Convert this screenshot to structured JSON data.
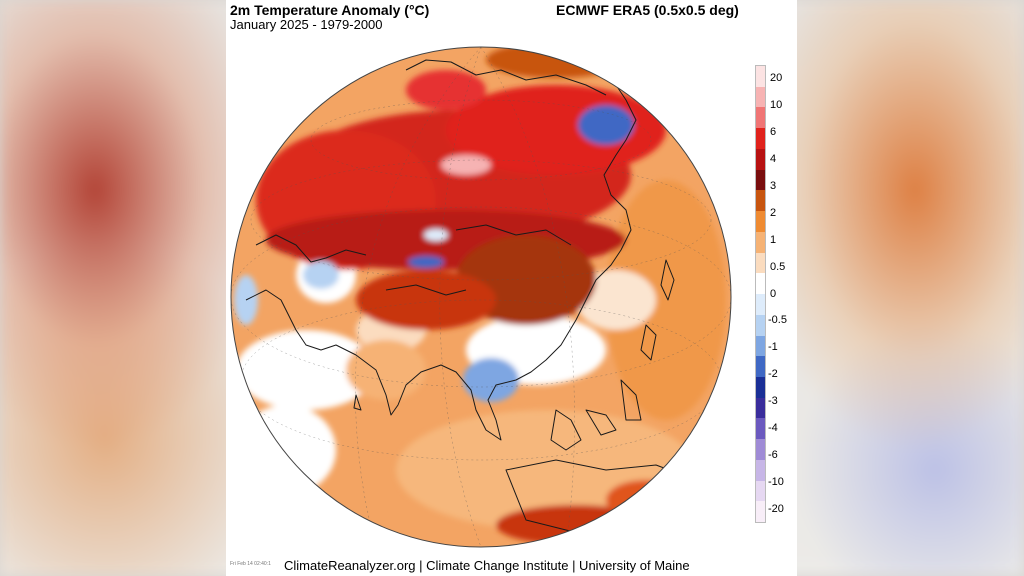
{
  "map": {
    "title": "2m Temperature Anomaly (°C)",
    "subtitle": "January 2025 - 1979-2000",
    "dataset": "ECMWF ERA5 (0.5x0.5 deg)",
    "footer": "ClimateReanalyzer.org | Climate Change Institute | University of Maine",
    "timestamp": "Fri Feb 14 02:40:1",
    "region": "Asia",
    "projection": "orthographic globe"
  },
  "legend": {
    "labels": [
      "20",
      "10",
      "6",
      "4",
      "3",
      "2",
      "1",
      "0.5",
      "0",
      "-0.5",
      "-1",
      "-2",
      "-3",
      "-4",
      "-6",
      "-10",
      "-20"
    ],
    "colors": [
      "#fce3e3",
      "#f7b3b3",
      "#f07575",
      "#e0221c",
      "#b81212",
      "#7a0e0e",
      "#c8550f",
      "#ef8b32",
      "#f6b274",
      "#fbdcbf",
      "#ffffff",
      "#deecfb",
      "#b6d2f2",
      "#7ea6e2",
      "#3f68c4",
      "#1a2f96",
      "#3a2d9c",
      "#6b59bf",
      "#9f8bd6",
      "#c7b6e7",
      "#e6d8f2",
      "#f8eef8"
    ]
  },
  "colors": {
    "panel_background": "#ffffff",
    "warm_extreme": "#e0221c",
    "warm_moderate": "#ef8b32",
    "cold_anomaly": "#3f68c4",
    "neutral": "#ffffff"
  }
}
